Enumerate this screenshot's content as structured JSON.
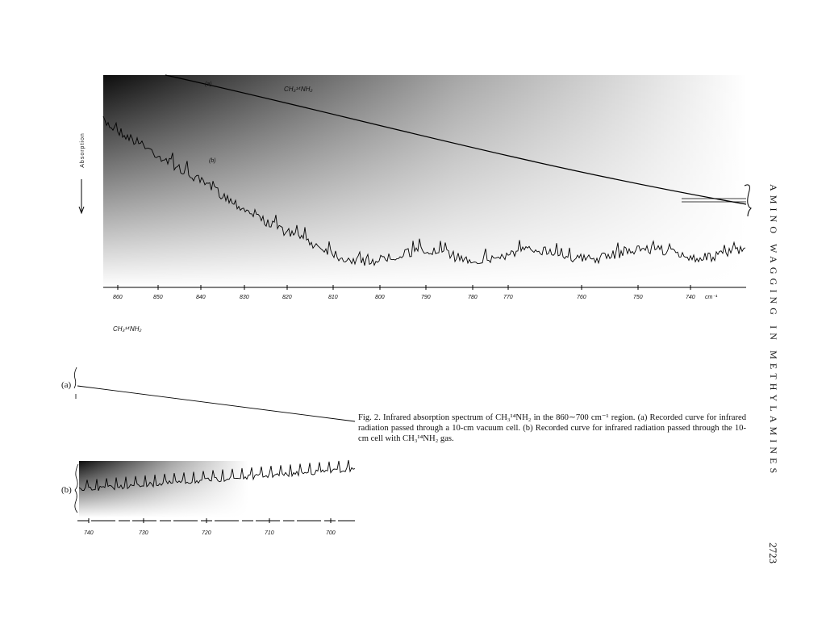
{
  "running_head": "AMINO WAGGING IN METHYLAMINES",
  "page_number": "2723",
  "figure": {
    "upper": {
      "axis_label": "Absorption",
      "compound": "CH₃¹⁴NH₂",
      "curve_a": "(a)",
      "curve_b": "(b)",
      "ticks": [
        "860",
        "850",
        "840",
        "830",
        "820",
        "810",
        "800",
        "790",
        "780",
        "770",
        "760",
        "750",
        "740"
      ],
      "unit": "cm⁻¹"
    },
    "lower": {
      "compound": "CH₃¹⁴NH₂",
      "curve_a": "(a)",
      "curve_b": "(b)",
      "ticks": [
        "740",
        "730",
        "720",
        "710",
        "700"
      ]
    },
    "caption": "Fig. 2. Infrared absorption spectrum of CH₃¹⁴NH₂ in the 860∼700 cm⁻¹ region. (a) Recorded curve for infrared radiation passed through a 10-cm vacuum cell. (b) Recorded curve for infrared radiation passed through the 10-cm cell with CH₃¹⁴NH₂ gas."
  }
}
